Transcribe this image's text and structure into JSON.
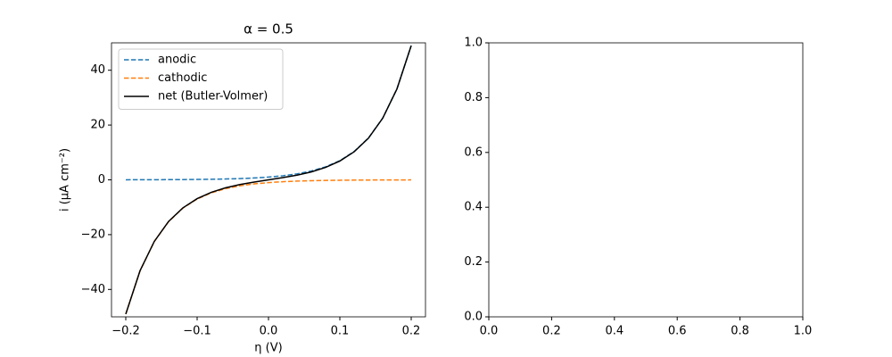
{
  "chart_data": [
    {
      "type": "line",
      "title": "α = 0.5",
      "xlabel": "η (V)",
      "ylabel": "i (μA cm⁻²)",
      "x": [
        -0.2,
        -0.18,
        -0.16,
        -0.14,
        -0.12,
        -0.1,
        -0.08,
        -0.06,
        -0.04,
        -0.02,
        0,
        0.02,
        0.04,
        0.06,
        0.08,
        0.1,
        0.12,
        0.14,
        0.16,
        0.18,
        0.2
      ],
      "series": [
        {
          "name": "anodic",
          "color": "#1f77b4",
          "dash": "dashed",
          "values": [
            0.02,
            0.03,
            0.044,
            0.066,
            0.097,
            0.143,
            0.211,
            0.311,
            0.459,
            0.678,
            1,
            1.48,
            2.18,
            3.21,
            4.74,
            7.0,
            10.33,
            15.25,
            22.5,
            33.2,
            49.0
          ]
        },
        {
          "name": "cathodic",
          "color": "#ff7f0e",
          "dash": "dashed",
          "values": [
            -49.0,
            -33.2,
            -22.5,
            -15.25,
            -10.33,
            -7.0,
            -4.74,
            -3.21,
            -2.18,
            -1.48,
            -1,
            -0.678,
            -0.459,
            -0.311,
            -0.211,
            -0.143,
            -0.097,
            -0.066,
            -0.044,
            -0.03,
            -0.02
          ]
        },
        {
          "name": "net (Butler-Volmer)",
          "color": "#000000",
          "dash": "solid",
          "values": [
            -48.98,
            -33.17,
            -22.46,
            -15.18,
            -10.23,
            -6.86,
            -4.53,
            -2.9,
            -1.72,
            -0.8,
            0,
            0.8,
            1.72,
            2.9,
            4.53,
            6.86,
            10.23,
            15.18,
            22.46,
            33.17,
            48.98
          ]
        }
      ],
      "xlim": [
        -0.22,
        0.22
      ],
      "xticks": [
        {
          "value": -0.2,
          "label": "−0.2"
        },
        {
          "value": -0.1,
          "label": "−0.1"
        },
        {
          "value": 0,
          "label": "0.0"
        },
        {
          "value": 0.1,
          "label": "0.1"
        },
        {
          "value": 0.2,
          "label": "0.2"
        }
      ],
      "ylim": [
        -50,
        50
      ],
      "yticks": [
        {
          "value": -40,
          "label": "−40"
        },
        {
          "value": -20,
          "label": "−20"
        },
        0,
        20,
        40
      ],
      "legend": "upper left"
    },
    {
      "type": "blank",
      "xlim": [
        0,
        1
      ],
      "xticks": [
        {
          "value": 0,
          "label": "0.0"
        },
        {
          "value": 0.2,
          "label": "0.2"
        },
        {
          "value": 0.4,
          "label": "0.4"
        },
        {
          "value": 0.6,
          "label": "0.6"
        },
        {
          "value": 0.8,
          "label": "0.8"
        },
        {
          "value": 1,
          "label": "1.0"
        }
      ],
      "ylim": [
        0,
        1
      ],
      "yticks": [
        {
          "value": 0,
          "label": "0.0"
        },
        {
          "value": 0.2,
          "label": "0.2"
        },
        {
          "value": 0.4,
          "label": "0.4"
        },
        {
          "value": 0.6,
          "label": "0.6"
        },
        {
          "value": 0.8,
          "label": "0.8"
        },
        {
          "value": 1,
          "label": "1.0"
        }
      ]
    }
  ]
}
